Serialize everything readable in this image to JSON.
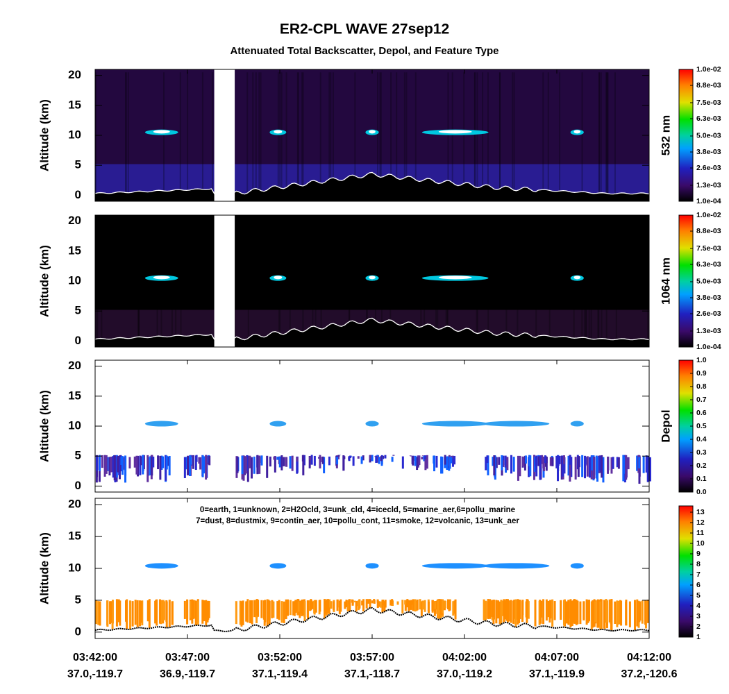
{
  "title": "ER2-CPL WAVE 27sep12",
  "subtitle": "Attenuated Total Backscatter, Depol, and Feature Type",
  "x_axis": {
    "time_labels": [
      "03:42:00",
      "03:47:00",
      "03:52:00",
      "03:57:00",
      "04:02:00",
      "04:07:00",
      "04:12:00"
    ],
    "location_labels": [
      "37.0,-119.7",
      "36.9,-119.7",
      "37.1,-119.4",
      "37.1,-118.7",
      "37.0,-119.2",
      "37.1,-119.9",
      "37.2,-120.6"
    ]
  },
  "chart_data": [
    {
      "type": "heatmap",
      "ylabel": "Altitude (km)",
      "ylim": [
        -1,
        21
      ],
      "yticks": [
        0,
        5,
        10,
        15,
        20
      ],
      "colorbar_label": "532 nm",
      "clim": [
        0.0001,
        0.01
      ],
      "colorbar_ticks": [
        {
          "value": 0.0001,
          "label": "1.0e-04"
        },
        {
          "value": 0.0013,
          "label": "1.3e-03"
        },
        {
          "value": 0.0026,
          "label": "2.6e-03"
        },
        {
          "value": 0.0038,
          "label": "3.8e-03"
        },
        {
          "value": 0.005,
          "label": "5.0e-03"
        },
        {
          "value": 0.0063,
          "label": "6.3e-03"
        },
        {
          "value": 0.0075,
          "label": "7.5e-03"
        },
        {
          "value": 0.0088,
          "label": "8.8e-03"
        },
        {
          "value": 0.01,
          "label": "1.0e-02"
        }
      ]
    },
    {
      "type": "heatmap",
      "ylabel": "Altitude (km)",
      "ylim": [
        -1,
        21
      ],
      "yticks": [
        0,
        5,
        10,
        15,
        20
      ],
      "colorbar_label": "1064 nm",
      "clim": [
        0.0001,
        0.01
      ],
      "colorbar_ticks": [
        {
          "value": 0.0001,
          "label": "1.0e-04"
        },
        {
          "value": 0.0013,
          "label": "1.3e-03"
        },
        {
          "value": 0.0026,
          "label": "2.6e-03"
        },
        {
          "value": 0.0038,
          "label": "3.8e-03"
        },
        {
          "value": 0.005,
          "label": "5.0e-03"
        },
        {
          "value": 0.0063,
          "label": "6.3e-03"
        },
        {
          "value": 0.0075,
          "label": "7.5e-03"
        },
        {
          "value": 0.0088,
          "label": "8.8e-03"
        },
        {
          "value": 0.01,
          "label": "1.0e-02"
        }
      ]
    },
    {
      "type": "heatmap",
      "ylabel": "Altitude (km)",
      "ylim": [
        -1,
        21
      ],
      "yticks": [
        0,
        5,
        10,
        15,
        20
      ],
      "colorbar_label": "Depol",
      "clim": [
        0,
        1
      ],
      "colorbar_ticks": [
        {
          "value": 0,
          "label": "0.0"
        },
        0.1,
        0.2,
        0.3,
        0.4,
        0.5,
        0.6,
        0.7,
        0.8,
        0.9,
        {
          "value": 1,
          "label": "1.0"
        }
      ]
    },
    {
      "type": "heatmap",
      "ylabel": "Altitude (km)",
      "ylim": [
        -1,
        21
      ],
      "yticks": [
        0,
        5,
        10,
        15,
        20
      ],
      "clim": [
        1,
        13.6
      ],
      "colorbar_ticks": [
        1,
        2,
        3,
        4,
        5,
        6,
        7,
        8,
        9,
        10,
        11,
        12,
        13
      ],
      "annotation": [
        "0=earth, 1=unknown, 2=H2Ocld, 3=unk_cld, 4=icecld, 5=marine_aer,6=pollu_marine",
        "7=dust, 8=dustmix, 9=contin_aer, 10=pollu_cont, 11=smoke, 12=volcanic, 13=unk_aer"
      ]
    }
  ]
}
